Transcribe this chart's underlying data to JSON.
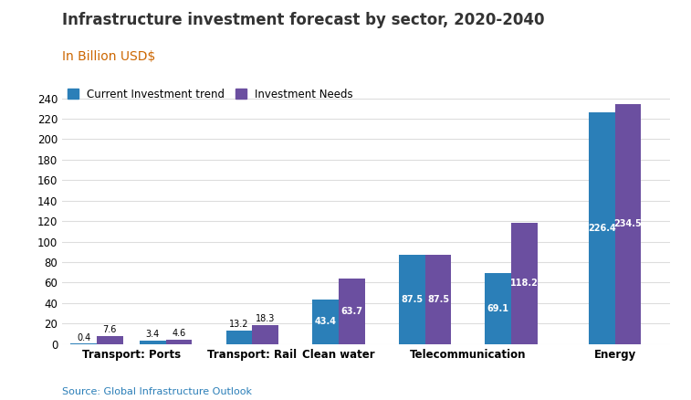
{
  "title": "Infrastructure investment forecast by sector, 2020-2040",
  "subtitle": "In Billion USD$",
  "source_text": "Source: Global Infrastructure Outlook",
  "categories": [
    "Transport: Ports",
    "",
    "Transport: Rail",
    "Clean water",
    "Telecommunication",
    "",
    "Energy"
  ],
  "xtick_labels": [
    "Transport: Ports",
    "Transport: Rail",
    "Clean water",
    "Telecommunication",
    "Energy"
  ],
  "xtick_positions": [
    0.5,
    2,
    3,
    4.5,
    6.5
  ],
  "current_investment": [
    0.4,
    3.4,
    13.2,
    43.4,
    87.5,
    69.1,
    226.4
  ],
  "investment_needs": [
    7.6,
    4.6,
    18.3,
    63.7,
    87.5,
    118.2,
    234.5
  ],
  "current_labels": [
    "0.4",
    "3.4",
    "13.2",
    "43.4",
    "87.5",
    "69.1",
    "226.4"
  ],
  "needs_labels": [
    "7.6",
    "4.6",
    "18.3",
    "63.7",
    "87.5",
    "118.2",
    "234.5"
  ],
  "current_color": "#2b7fb8",
  "needs_color": "#6b4fa0",
  "bar_width": 0.38,
  "ylim": [
    0,
    250
  ],
  "yticks": [
    0,
    20,
    40,
    60,
    80,
    100,
    120,
    140,
    160,
    180,
    200,
    220,
    240
  ],
  "legend_current": "Current Investment trend",
  "legend_needs": "Investment Needs",
  "title_fontsize": 12,
  "subtitle_fontsize": 10,
  "label_fontsize": 7,
  "tick_fontsize": 8.5,
  "legend_fontsize": 8.5,
  "background_color": "#ffffff",
  "grid_color": "#dddddd",
  "title_color": "#333333",
  "subtitle_color": "#cc6600",
  "source_color": "#2b7fb8"
}
